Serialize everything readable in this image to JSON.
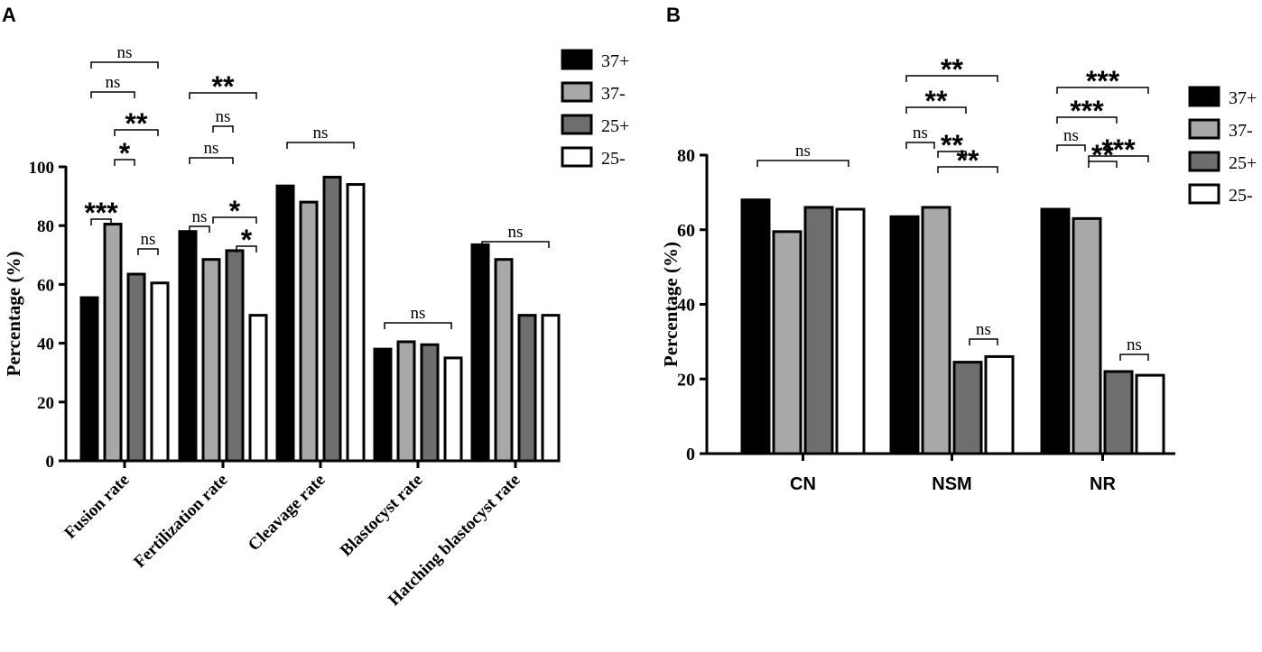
{
  "panels": [
    {
      "id": "A",
      "letter": "A",
      "type": "bar",
      "ylabel": "Percentage (%)",
      "ylim": [
        0,
        100
      ],
      "yticks": [
        0,
        20,
        40,
        60,
        80,
        100
      ],
      "categories": [
        "Fusion rate",
        "Fertilization rate",
        "Cleavage rate",
        "Blastocyst rate",
        "Hatching blastocyst rate"
      ],
      "series": [
        {
          "name": "37+",
          "values": [
            55.5,
            78,
            93.5,
            38,
            73.5
          ]
        },
        {
          "name": "37-",
          "values": [
            80.5,
            68.5,
            88,
            40.5,
            68.5
          ]
        },
        {
          "name": "25+",
          "values": [
            63.5,
            71.5,
            96.5,
            39.5,
            49.5
          ]
        },
        {
          "name": "25-",
          "values": [
            60.5,
            49.5,
            94,
            35,
            49.5
          ]
        }
      ],
      "significance": [
        {
          "group": 0,
          "from": 0,
          "to": 3,
          "label": "ns"
        },
        {
          "group": 0,
          "from": 0,
          "to": 2,
          "label": "ns"
        },
        {
          "group": 0,
          "from": 1,
          "to": 3,
          "label": "**"
        },
        {
          "group": 0,
          "from": 1,
          "to": 2,
          "label": "*"
        },
        {
          "group": 0,
          "from": 0,
          "to": 1,
          "label": "***"
        },
        {
          "group": 0,
          "from": 2,
          "to": 3,
          "label": "ns"
        },
        {
          "group": 1,
          "from": 0,
          "to": 3,
          "label": "**"
        },
        {
          "group": 1,
          "from": 1,
          "to": 2,
          "label": "ns"
        },
        {
          "group": 1,
          "from": 0,
          "to": 2,
          "label": "ns"
        },
        {
          "group": 1,
          "from": 1,
          "to": 3,
          "label": "*"
        },
        {
          "group": 1,
          "from": 0,
          "to": 1,
          "label": "ns"
        },
        {
          "group": 1,
          "from": 2,
          "to": 3,
          "label": "*"
        },
        {
          "group": 2,
          "from": 0,
          "to": 3,
          "label": "ns"
        },
        {
          "group": 3,
          "from": 0,
          "to": 3,
          "label": "ns"
        },
        {
          "group": 4,
          "from": 0,
          "to": 3,
          "label": "ns"
        }
      ]
    },
    {
      "id": "B",
      "letter": "B",
      "type": "bar",
      "ylabel": "Percentage (%)",
      "ylim": [
        0,
        80
      ],
      "yticks": [
        0,
        20,
        40,
        60,
        80
      ],
      "categories": [
        "CN",
        "NSM",
        "NR"
      ],
      "series": [
        {
          "name": "37+",
          "values": [
            68,
            63.5,
            65.5
          ]
        },
        {
          "name": "37-",
          "values": [
            59.5,
            66,
            63
          ]
        },
        {
          "name": "25+",
          "values": [
            66,
            24.5,
            22
          ]
        },
        {
          "name": "25-",
          "values": [
            65.5,
            26,
            21
          ]
        }
      ],
      "significance": [
        {
          "group": 0,
          "from": 0,
          "to": 3,
          "label": "ns"
        },
        {
          "group": 1,
          "from": 0,
          "to": 3,
          "label": "**"
        },
        {
          "group": 1,
          "from": 0,
          "to": 2,
          "label": "**"
        },
        {
          "group": 1,
          "from": 1,
          "to": 3,
          "label": "**"
        },
        {
          "group": 1,
          "from": 0,
          "to": 1,
          "label": "ns"
        },
        {
          "group": 1,
          "from": 1,
          "to": 2,
          "label": "**"
        },
        {
          "group": 1,
          "from": 2,
          "to": 3,
          "label": "ns"
        },
        {
          "group": 2,
          "from": 0,
          "to": 3,
          "label": "***"
        },
        {
          "group": 2,
          "from": 0,
          "to": 2,
          "label": "***"
        },
        {
          "group": 2,
          "from": 1,
          "to": 3,
          "label": "***"
        },
        {
          "group": 2,
          "from": 0,
          "to": 1,
          "label": "ns"
        },
        {
          "group": 2,
          "from": 1,
          "to": 2,
          "label": "**"
        },
        {
          "group": 2,
          "from": 2,
          "to": 3,
          "label": "ns"
        }
      ]
    }
  ],
  "legend": {
    "entries": [
      "37+",
      "37-",
      "25+",
      "25-"
    ],
    "colors": [
      "#000000",
      "#a8a8a8",
      "#6e6e6e",
      "#ffffff"
    ]
  },
  "chart_data": [
    {
      "type": "bar",
      "title": "A",
      "xlabel": "",
      "ylabel": "Percentage (%)",
      "ylim": [
        0,
        100
      ],
      "categories": [
        "Fusion rate",
        "Fertilization rate",
        "Cleavage rate",
        "Blastocyst rate",
        "Hatching blastocyst rate"
      ],
      "series": [
        {
          "name": "37+",
          "values": [
            55.5,
            78,
            93.5,
            38,
            73.5
          ]
        },
        {
          "name": "37-",
          "values": [
            80.5,
            68.5,
            88,
            40.5,
            68.5
          ]
        },
        {
          "name": "25+",
          "values": [
            63.5,
            71.5,
            96.5,
            39.5,
            49.5
          ]
        },
        {
          "name": "25-",
          "values": [
            60.5,
            49.5,
            94,
            35,
            49.5
          ]
        }
      ],
      "annotations": [
        "ns",
        "ns",
        "**",
        "*",
        "***",
        "ns",
        "**",
        "ns",
        "ns",
        "*",
        "ns",
        "*",
        "ns",
        "ns",
        "ns"
      ]
    },
    {
      "type": "bar",
      "title": "B",
      "xlabel": "",
      "ylabel": "Percentage (%)",
      "ylim": [
        0,
        80
      ],
      "categories": [
        "CN",
        "NSM",
        "NR"
      ],
      "series": [
        {
          "name": "37+",
          "values": [
            68,
            63.5,
            65.5
          ]
        },
        {
          "name": "37-",
          "values": [
            59.5,
            66,
            63
          ]
        },
        {
          "name": "25+",
          "values": [
            66,
            24.5,
            22
          ]
        },
        {
          "name": "25-",
          "values": [
            65.5,
            26,
            21
          ]
        }
      ],
      "annotations": [
        "ns",
        "**",
        "**",
        "**",
        "ns",
        "**",
        "ns",
        "***",
        "***",
        "***",
        "ns",
        "**",
        "ns"
      ]
    }
  ]
}
